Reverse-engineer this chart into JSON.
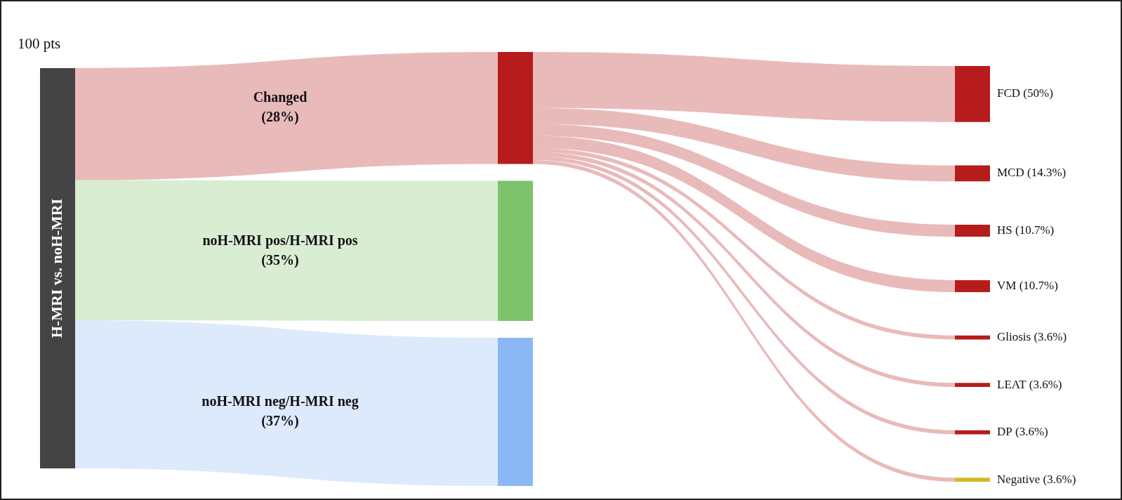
{
  "chart_data": {
    "type": "other",
    "title": "100 pts",
    "ylabel": "H-MRI vs. noH-MRI",
    "categories": [
      "Changed",
      "noH-MRI pos/H-MRI pos",
      "noH-MRI neg/H-MRI neg",
      "FCD",
      "MCD",
      "HS",
      "VM",
      "Gliosis",
      "LEAT",
      "DP",
      "Negative"
    ],
    "series": [
      {
        "values": [
          28,
          35,
          37,
          null,
          null,
          null,
          null,
          null,
          null,
          null,
          null
        ],
        "value_labels": [
          "(28%)",
          "(35%)",
          "(37%)",
          null,
          null,
          null,
          null,
          null,
          null,
          null,
          null
        ],
        "colors": [
          "#b71c1c",
          "#7dc36b",
          "#8ab8f5",
          null,
          null,
          null,
          null,
          null,
          null,
          null,
          null
        ]
      },
      {
        "values": [
          null,
          null,
          null,
          50,
          14.3,
          10.7,
          10.7,
          3.6,
          3.6,
          3.6,
          3.6
        ],
        "value_labels": [
          null,
          null,
          null,
          "(50%)",
          "(14.3%)",
          "(10.7%)",
          "(10.7%)",
          "(3.6%)",
          "(3.6%)",
          "(3.6%)",
          "(3.6%)"
        ],
        "colors": [
          null,
          null,
          null,
          "#b71c1c",
          "#b71c1c",
          "#b71c1c",
          "#b71c1c",
          "#b71c1c",
          "#b71c1c",
          "#b71c1c",
          "#d4b82a"
        ]
      }
    ]
  }
}
